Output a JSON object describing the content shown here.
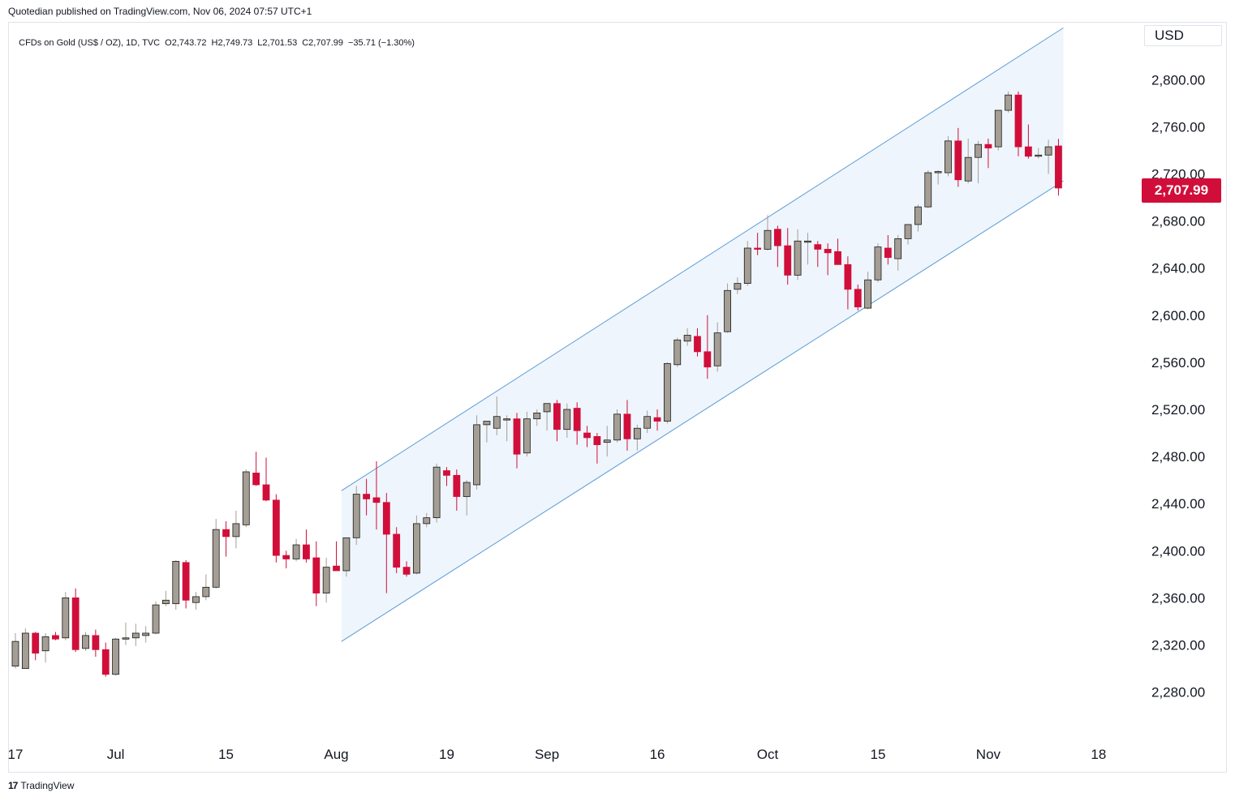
{
  "publisher_line": "Quotedian published on TradingView.com, Nov 06, 2024 07:57 UTC+1",
  "symbol": {
    "name": "CFDs on Gold (US$ / OZ), 1D, TVC",
    "open": "O2,743.72",
    "high": "H2,749.73",
    "low": "L2,701.53",
    "close": "C2,707.99",
    "change": "−35.71 (−1.30%)"
  },
  "currency": "USD",
  "last_price_label": "2,707.99",
  "footer_brand": "TradingView",
  "footer_logo": "17",
  "colors": {
    "up": "#a59e95",
    "down": "#d10e3a",
    "channel_line": "#5b9bd5",
    "channel_fill": "#eef5fc"
  },
  "chart_data": {
    "type": "candlestick",
    "x_ticks": [
      "17",
      "Jul",
      "15",
      "Aug",
      "19",
      "Sep",
      "16",
      "Oct",
      "15",
      "Nov",
      "18"
    ],
    "y_ticks": [
      "2,280.00",
      "2,320.00",
      "2,360.00",
      "2,400.00",
      "2,440.00",
      "2,480.00",
      "2,520.00",
      "2,560.00",
      "2,600.00",
      "2,640.00",
      "2,680.00",
      "2,720.00",
      "2,760.00",
      "2,800.00"
    ],
    "ylim": [
      2250,
      2850
    ],
    "x_tick_index": [
      0,
      10,
      21,
      32,
      43,
      53,
      64,
      75,
      86,
      97,
      108
    ],
    "candles": [
      {
        "o": 2302,
        "h": 2330,
        "l": 2300,
        "c": 2323
      },
      {
        "o": 2300,
        "h": 2334,
        "l": 2300,
        "c": 2330
      },
      {
        "o": 2330,
        "h": 2331,
        "l": 2307,
        "c": 2313
      },
      {
        "o": 2315,
        "h": 2330,
        "l": 2305,
        "c": 2327
      },
      {
        "o": 2328,
        "h": 2331,
        "l": 2324,
        "c": 2325
      },
      {
        "o": 2326,
        "h": 2365,
        "l": 2324,
        "c": 2360
      },
      {
        "o": 2360,
        "h": 2368,
        "l": 2314,
        "c": 2316
      },
      {
        "o": 2317,
        "h": 2331,
        "l": 2315,
        "c": 2328
      },
      {
        "o": 2328,
        "h": 2333,
        "l": 2310,
        "c": 2316
      },
      {
        "o": 2316,
        "h": 2322,
        "l": 2293,
        "c": 2295
      },
      {
        "o": 2295,
        "h": 2326,
        "l": 2294,
        "c": 2325
      },
      {
        "o": 2325,
        "h": 2339,
        "l": 2320,
        "c": 2326
      },
      {
        "o": 2326,
        "h": 2338,
        "l": 2319,
        "c": 2330
      },
      {
        "o": 2328,
        "h": 2336,
        "l": 2322,
        "c": 2330
      },
      {
        "o": 2330,
        "h": 2357,
        "l": 2329,
        "c": 2354
      },
      {
        "o": 2355,
        "h": 2366,
        "l": 2353,
        "c": 2358
      },
      {
        "o": 2355,
        "h": 2392,
        "l": 2350,
        "c": 2391
      },
      {
        "o": 2390,
        "h": 2392,
        "l": 2351,
        "c": 2358
      },
      {
        "o": 2356,
        "h": 2365,
        "l": 2350,
        "c": 2361
      },
      {
        "o": 2361,
        "h": 2380,
        "l": 2358,
        "c": 2369
      },
      {
        "o": 2369,
        "h": 2427,
        "l": 2368,
        "c": 2418
      },
      {
        "o": 2418,
        "h": 2425,
        "l": 2395,
        "c": 2412
      },
      {
        "o": 2412,
        "h": 2434,
        "l": 2402,
        "c": 2423
      },
      {
        "o": 2422,
        "h": 2469,
        "l": 2420,
        "c": 2467
      },
      {
        "o": 2466,
        "h": 2484,
        "l": 2455,
        "c": 2456
      },
      {
        "o": 2456,
        "h": 2479,
        "l": 2442,
        "c": 2443
      },
      {
        "o": 2443,
        "h": 2448,
        "l": 2390,
        "c": 2396
      },
      {
        "o": 2396,
        "h": 2400,
        "l": 2385,
        "c": 2393
      },
      {
        "o": 2393,
        "h": 2410,
        "l": 2391,
        "c": 2405
      },
      {
        "o": 2405,
        "h": 2418,
        "l": 2390,
        "c": 2393
      },
      {
        "o": 2394,
        "h": 2408,
        "l": 2353,
        "c": 2364
      },
      {
        "o": 2364,
        "h": 2394,
        "l": 2356,
        "c": 2386
      },
      {
        "o": 2387,
        "h": 2408,
        "l": 2385,
        "c": 2383
      },
      {
        "o": 2383,
        "h": 2411,
        "l": 2378,
        "c": 2411
      },
      {
        "o": 2411,
        "h": 2455,
        "l": 2405,
        "c": 2448
      },
      {
        "o": 2448,
        "h": 2461,
        "l": 2430,
        "c": 2444
      },
      {
        "o": 2445,
        "h": 2476,
        "l": 2418,
        "c": 2441
      },
      {
        "o": 2441,
        "h": 2449,
        "l": 2364,
        "c": 2414
      },
      {
        "o": 2414,
        "h": 2420,
        "l": 2381,
        "c": 2386
      },
      {
        "o": 2386,
        "h": 2391,
        "l": 2378,
        "c": 2380
      },
      {
        "o": 2381,
        "h": 2430,
        "l": 2380,
        "c": 2423
      },
      {
        "o": 2423,
        "h": 2432,
        "l": 2420,
        "c": 2428
      },
      {
        "o": 2428,
        "h": 2474,
        "l": 2424,
        "c": 2471
      },
      {
        "o": 2468,
        "h": 2471,
        "l": 2455,
        "c": 2464
      },
      {
        "o": 2464,
        "h": 2469,
        "l": 2434,
        "c": 2446
      },
      {
        "o": 2446,
        "h": 2460,
        "l": 2430,
        "c": 2458
      },
      {
        "o": 2456,
        "h": 2515,
        "l": 2452,
        "c": 2507
      },
      {
        "o": 2507,
        "h": 2510,
        "l": 2492,
        "c": 2510
      },
      {
        "o": 2504,
        "h": 2531,
        "l": 2498,
        "c": 2514
      },
      {
        "o": 2512,
        "h": 2515,
        "l": 2493,
        "c": 2512
      },
      {
        "o": 2512,
        "h": 2517,
        "l": 2470,
        "c": 2482
      },
      {
        "o": 2483,
        "h": 2518,
        "l": 2480,
        "c": 2512
      },
      {
        "o": 2512,
        "h": 2520,
        "l": 2506,
        "c": 2517
      },
      {
        "o": 2518,
        "h": 2525,
        "l": 2502,
        "c": 2525
      },
      {
        "o": 2525,
        "h": 2528,
        "l": 2493,
        "c": 2503
      },
      {
        "o": 2503,
        "h": 2525,
        "l": 2496,
        "c": 2520
      },
      {
        "o": 2521,
        "h": 2526,
        "l": 2490,
        "c": 2502
      },
      {
        "o": 2500,
        "h": 2506,
        "l": 2488,
        "c": 2496
      },
      {
        "o": 2497,
        "h": 2500,
        "l": 2474,
        "c": 2490
      },
      {
        "o": 2492,
        "h": 2506,
        "l": 2480,
        "c": 2494
      },
      {
        "o": 2494,
        "h": 2520,
        "l": 2492,
        "c": 2516
      },
      {
        "o": 2516,
        "h": 2528,
        "l": 2485,
        "c": 2495
      },
      {
        "o": 2495,
        "h": 2507,
        "l": 2485,
        "c": 2504
      },
      {
        "o": 2504,
        "h": 2519,
        "l": 2500,
        "c": 2514
      },
      {
        "o": 2513,
        "h": 2520,
        "l": 2502,
        "c": 2510
      },
      {
        "o": 2510,
        "h": 2560,
        "l": 2508,
        "c": 2559
      },
      {
        "o": 2558,
        "h": 2581,
        "l": 2556,
        "c": 2579
      },
      {
        "o": 2578,
        "h": 2589,
        "l": 2574,
        "c": 2583
      },
      {
        "o": 2582,
        "h": 2589,
        "l": 2565,
        "c": 2569
      },
      {
        "o": 2569,
        "h": 2600,
        "l": 2546,
        "c": 2556
      },
      {
        "o": 2557,
        "h": 2594,
        "l": 2552,
        "c": 2585
      },
      {
        "o": 2586,
        "h": 2627,
        "l": 2585,
        "c": 2621
      },
      {
        "o": 2622,
        "h": 2632,
        "l": 2618,
        "c": 2627
      },
      {
        "o": 2627,
        "h": 2663,
        "l": 2625,
        "c": 2657
      },
      {
        "o": 2657,
        "h": 2670,
        "l": 2651,
        "c": 2656
      },
      {
        "o": 2656,
        "h": 2685,
        "l": 2655,
        "c": 2672
      },
      {
        "o": 2673,
        "h": 2676,
        "l": 2641,
        "c": 2659
      },
      {
        "o": 2659,
        "h": 2674,
        "l": 2626,
        "c": 2634
      },
      {
        "o": 2634,
        "h": 2673,
        "l": 2630,
        "c": 2663
      },
      {
        "o": 2662,
        "h": 2670,
        "l": 2643,
        "c": 2663
      },
      {
        "o": 2660,
        "h": 2663,
        "l": 2641,
        "c": 2656
      },
      {
        "o": 2656,
        "h": 2661,
        "l": 2634,
        "c": 2653
      },
      {
        "o": 2654,
        "h": 2665,
        "l": 2643,
        "c": 2643
      },
      {
        "o": 2643,
        "h": 2650,
        "l": 2605,
        "c": 2622
      },
      {
        "o": 2622,
        "h": 2626,
        "l": 2604,
        "c": 2607
      },
      {
        "o": 2606,
        "h": 2637,
        "l": 2605,
        "c": 2630
      },
      {
        "o": 2630,
        "h": 2661,
        "l": 2628,
        "c": 2658
      },
      {
        "o": 2657,
        "h": 2668,
        "l": 2643,
        "c": 2649
      },
      {
        "o": 2648,
        "h": 2668,
        "l": 2638,
        "c": 2665
      },
      {
        "o": 2665,
        "h": 2676,
        "l": 2660,
        "c": 2677
      },
      {
        "o": 2677,
        "h": 2694,
        "l": 2671,
        "c": 2692
      },
      {
        "o": 2692,
        "h": 2723,
        "l": 2691,
        "c": 2721
      },
      {
        "o": 2721,
        "h": 2723,
        "l": 2711,
        "c": 2722
      },
      {
        "o": 2721,
        "h": 2752,
        "l": 2718,
        "c": 2748
      },
      {
        "o": 2748,
        "h": 2759,
        "l": 2709,
        "c": 2715
      },
      {
        "o": 2714,
        "h": 2750,
        "l": 2712,
        "c": 2734
      },
      {
        "o": 2734,
        "h": 2748,
        "l": 2712,
        "c": 2745
      },
      {
        "o": 2745,
        "h": 2750,
        "l": 2725,
        "c": 2742
      },
      {
        "o": 2743,
        "h": 2774,
        "l": 2740,
        "c": 2774
      },
      {
        "o": 2774,
        "h": 2790,
        "l": 2772,
        "c": 2787
      },
      {
        "o": 2787,
        "h": 2790,
        "l": 2735,
        "c": 2743
      },
      {
        "o": 2743,
        "h": 2762,
        "l": 2733,
        "c": 2735
      },
      {
        "o": 2735,
        "h": 2742,
        "l": 2733,
        "c": 2736
      },
      {
        "o": 2736,
        "h": 2749,
        "l": 2720,
        "c": 2743
      },
      {
        "o": 2743.72,
        "h": 2749.73,
        "l": 2701.53,
        "c": 2707.99
      }
    ],
    "channel": {
      "start_index": 33,
      "end_index": 104,
      "upper": [
        2451,
        2844
      ],
      "lower": [
        2323,
        2714
      ]
    }
  }
}
